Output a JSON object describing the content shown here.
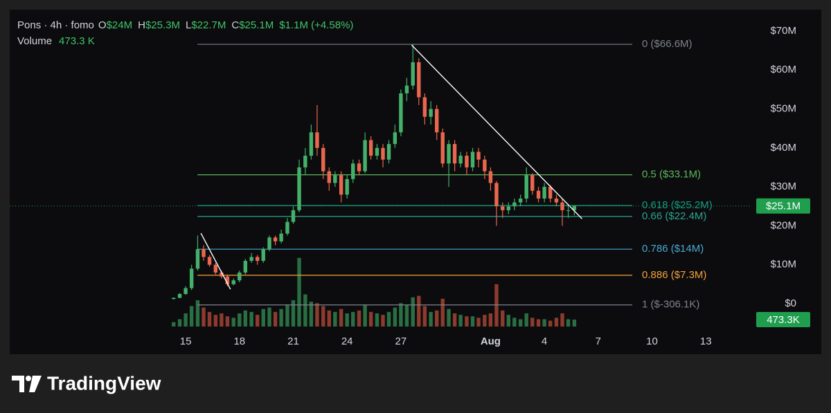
{
  "chart_data": {
    "type": "candlestick",
    "header": {
      "title": "Pons · 4h · fomo",
      "fields": [
        {
          "label": "O",
          "value": "$24M"
        },
        {
          "label": "H",
          "value": "$25.3M"
        },
        {
          "label": "L",
          "value": "$22.7M"
        },
        {
          "label": "C",
          "value": "$25.1M"
        }
      ],
      "change": "$1.1M (+4.58%)",
      "volume_label": "Volume",
      "volume_value": "473.3 K"
    },
    "x": [
      14.33,
      14.67,
      15,
      15.33,
      15.67,
      16,
      16.33,
      16.67,
      17,
      17.33,
      17.67,
      18,
      18.33,
      18.67,
      19,
      19.33,
      19.67,
      20,
      20.33,
      20.67,
      21,
      21.33,
      21.67,
      22,
      22.33,
      22.67,
      23,
      23.33,
      23.67,
      24,
      24.33,
      24.67,
      25,
      25.33,
      25.67,
      26,
      26.33,
      26.67,
      27,
      27.33,
      27.67,
      28,
      28.33,
      28.67,
      29,
      29.33,
      29.67,
      30,
      30.33,
      30.67,
      31,
      31.33,
      31.67,
      32,
      32.33,
      32.67,
      33,
      33.33,
      33.67,
      34,
      34.33,
      34.67,
      35,
      35.33,
      35.67,
      36,
      36.33,
      36.67
    ],
    "open": [
      1.2,
      1.5,
      2.5,
      4,
      9,
      14,
      12,
      10,
      8,
      7,
      5,
      6,
      8,
      11,
      12,
      11,
      14,
      17,
      16,
      18,
      21,
      24,
      35,
      38,
      44,
      40,
      34,
      31,
      33,
      28,
      32,
      36,
      34,
      42,
      38,
      40,
      37,
      41,
      44,
      54,
      56,
      62,
      53,
      48,
      50,
      44,
      36,
      41,
      36,
      38,
      35,
      39,
      37,
      34,
      31,
      25,
      24,
      25,
      26,
      27,
      33,
      29,
      27,
      30,
      27,
      26,
      24,
      24
    ],
    "high": [
      1.6,
      2.7,
      4.5,
      10,
      17.5,
      15,
      12.5,
      10.5,
      8.5,
      7.5,
      6.5,
      8.5,
      11.5,
      13,
      12.5,
      14.5,
      17.5,
      17.5,
      19,
      22,
      25,
      37,
      40,
      46,
      51,
      41,
      35,
      34,
      34,
      33,
      37,
      37,
      44,
      43,
      41,
      41,
      42,
      46,
      55,
      58,
      66.6,
      63,
      54,
      52,
      51,
      45,
      42,
      42,
      39,
      39,
      40,
      40,
      38,
      35,
      31.5,
      26,
      26,
      27,
      28,
      35,
      33.5,
      30,
      31,
      30.5,
      28,
      27,
      25.5,
      25.3
    ],
    "low": [
      1.1,
      1.4,
      2.3,
      3.5,
      8.5,
      11,
      9.5,
      7.5,
      6.5,
      4.5,
      4.7,
      5.5,
      7.5,
      10.5,
      10,
      10.5,
      13.5,
      15,
      15.5,
      17.5,
      20.5,
      23.5,
      33,
      37,
      38,
      32,
      29,
      30,
      26,
      27,
      31,
      33,
      33.5,
      37,
      37,
      35,
      36,
      40,
      43,
      52,
      55,
      51,
      46,
      46,
      42,
      35,
      30,
      34,
      35,
      33,
      34,
      35,
      32,
      29,
      20,
      22,
      23,
      24,
      25,
      26,
      28,
      26,
      26,
      26,
      25,
      20,
      22,
      22.7
    ],
    "close": [
      1.5,
      2.5,
      4,
      9,
      14,
      12,
      10,
      8,
      7,
      5,
      6,
      8,
      11,
      12,
      11,
      14,
      17,
      16,
      18,
      21,
      24,
      35,
      38,
      44,
      40,
      34,
      31,
      33,
      28,
      32,
      36,
      34,
      42,
      38,
      40,
      37,
      41,
      44,
      54,
      56,
      62,
      53,
      48,
      50,
      44,
      36,
      41,
      36,
      38,
      35,
      39,
      37,
      34,
      31,
      25,
      24,
      25,
      26,
      27,
      33,
      29,
      27,
      30,
      27,
      26,
      24,
      24,
      25.1
    ],
    "volume": [
      300,
      500,
      900,
      1400,
      1800,
      1300,
      1000,
      800,
      900,
      700,
      600,
      900,
      1100,
      1000,
      800,
      1200,
      1300,
      1000,
      1200,
      1500,
      1800,
      4700,
      2200,
      1700,
      1600,
      1400,
      1100,
      1000,
      1200,
      900,
      1000,
      1100,
      1500,
      1000,
      900,
      800,
      1000,
      1300,
      1600,
      1500,
      2000,
      2100,
      1400,
      1000,
      1100,
      1900,
      1200,
      900,
      800,
      700,
      700,
      600,
      800,
      900,
      2900,
      1100,
      800,
      600,
      500,
      900,
      600,
      500,
      500,
      400,
      600,
      900,
      500,
      473.3
    ],
    "up_color": "#45b06a",
    "down_color": "#e9674e",
    "up_volume_color": "#2a6e43",
    "down_volume_color": "#8c3b2d",
    "xlim": [
      5.19,
      46.54
    ],
    "ylim": [
      -5.86,
      75.49
    ],
    "volume_ylim": [
      0,
      9000
    ],
    "yticks": [
      {
        "value": 0,
        "label": "$0"
      },
      {
        "value": 10,
        "label": "$10M"
      },
      {
        "value": 20,
        "label": "$20M"
      },
      {
        "value": 30,
        "label": "$30M"
      },
      {
        "value": 40,
        "label": "$40M"
      },
      {
        "value": 50,
        "label": "$50M"
      },
      {
        "value": 60,
        "label": "$60M"
      },
      {
        "value": 70,
        "label": "$70M"
      }
    ],
    "xticks": [
      15,
      18,
      21,
      24,
      27,
      {
        "value": 32,
        "label": "Aug"
      },
      {
        "value": 35,
        "label": "4"
      },
      {
        "value": 38,
        "label": "7"
      },
      {
        "value": 41,
        "label": "10"
      },
      {
        "value": 44,
        "label": "13"
      }
    ],
    "fib_x": [
      15.66,
      39.9
    ],
    "fib_levels": [
      {
        "value": 66.6,
        "label": "0 ($66.6M)",
        "color": "#80838e"
      },
      {
        "value": 33.1,
        "label": "0.5 ($33.1M)",
        "color": "#5cb85c"
      },
      {
        "value": 25.2,
        "label": "0.618 ($25.2M)",
        "color": "#159c86"
      },
      {
        "value": 22.4,
        "label": "0.66 ($22.4M)",
        "color": "#2aa68f"
      },
      {
        "value": 14,
        "label": "0.786 ($14M)",
        "color": "#4aa8d4"
      },
      {
        "value": 7.3,
        "label": "0.886 ($7.3M)",
        "color": "#f5a33a"
      },
      {
        "value": -0.3061,
        "label": "1 ($-306.1K)",
        "color": "#80838e"
      }
    ],
    "trendlines": [
      {
        "x": [
          15.85,
          17.5
        ],
        "y": [
          18.1,
          3.7
        ]
      },
      {
        "x": [
          27.6,
          37.1
        ],
        "y": [
          66.4,
          21.8
        ]
      }
    ],
    "last_price": {
      "value": 25.1,
      "label": "$25.1M",
      "color": "#1f9e4e"
    },
    "last_volume": {
      "value": 473.3,
      "label": "473.3K",
      "color": "#1f9e4e"
    }
  },
  "footer": {
    "brand": "TradingView"
  }
}
